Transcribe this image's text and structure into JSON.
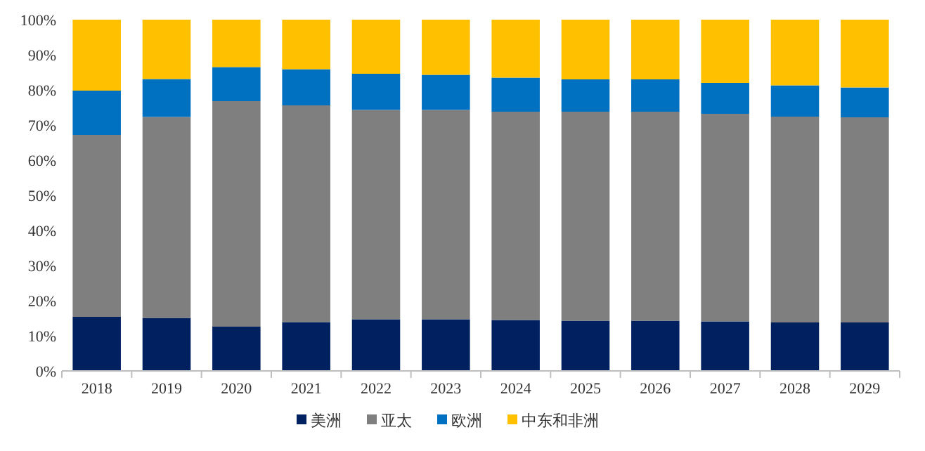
{
  "chart_data": {
    "type": "bar",
    "stacked": true,
    "categories": [
      "2018",
      "2019",
      "2020",
      "2021",
      "2022",
      "2023",
      "2024",
      "2025",
      "2026",
      "2027",
      "2028",
      "2029"
    ],
    "series": [
      {
        "name": "美洲",
        "color": "#002060",
        "values": [
          15.4,
          15.1,
          12.6,
          13.9,
          14.7,
          14.7,
          14.5,
          14.3,
          14.3,
          14.1,
          13.8,
          13.8
        ]
      },
      {
        "name": "亚太",
        "color": "#7f7f7f",
        "values": [
          51.8,
          57.2,
          64.2,
          61.7,
          59.6,
          59.6,
          59.3,
          59.5,
          59.5,
          59.1,
          58.6,
          58.4
        ]
      },
      {
        "name": "欧洲",
        "color": "#0070c0",
        "values": [
          12.6,
          10.8,
          9.7,
          10.3,
          10.3,
          10.0,
          9.7,
          9.2,
          9.2,
          8.8,
          8.9,
          8.5
        ]
      },
      {
        "name": "中东和非洲",
        "color": "#ffc000",
        "values": [
          20.2,
          16.9,
          13.5,
          14.1,
          15.4,
          15.7,
          16.5,
          17.0,
          17.0,
          18.0,
          18.7,
          19.3
        ]
      }
    ],
    "ylim": [
      0,
      100
    ],
    "yticks": [
      {
        "value": 0,
        "label": "0%"
      },
      {
        "value": 10,
        "label": "10%"
      },
      {
        "value": 20,
        "label": "20%"
      },
      {
        "value": 30,
        "label": "30%"
      },
      {
        "value": 40,
        "label": "40%"
      },
      {
        "value": 50,
        "label": "50%"
      },
      {
        "value": 60,
        "label": "60%"
      },
      {
        "value": 70,
        "label": "70%"
      },
      {
        "value": 80,
        "label": "80%"
      },
      {
        "value": 90,
        "label": "90%"
      },
      {
        "value": 100,
        "label": "100%"
      }
    ],
    "grid": false,
    "legend": "bottom"
  }
}
